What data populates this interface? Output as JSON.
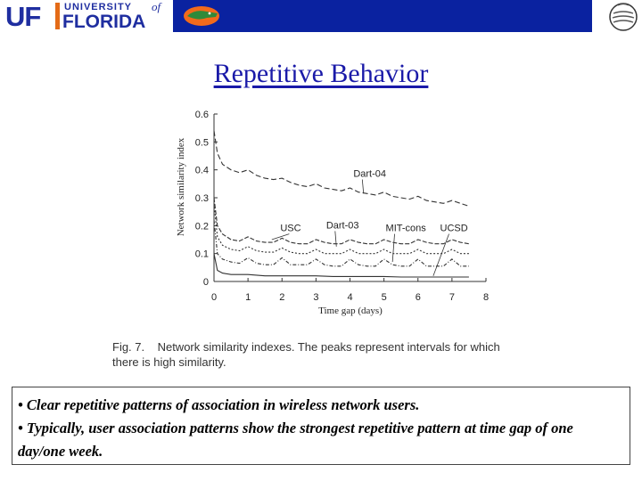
{
  "header": {
    "uf_letters": "UF",
    "university_text": "UNIVERSITY",
    "of_text": "of",
    "florida_text": "FLORIDA",
    "band_color": "#0a22a0",
    "logo_color": "#1f2ea0",
    "accent_color": "#e46b17",
    "icons": [
      "uf-logo",
      "gator-logo-icon",
      "university-seal-icon"
    ]
  },
  "slide": {
    "title": "Repetitive Behavior",
    "title_color": "#1a1aa8"
  },
  "figure": {
    "caption_line1": "Fig. 7.    Network similarity indexes. The peaks represent intervals for which",
    "caption_line2": "there is high similarity."
  },
  "chart_data": {
    "type": "line",
    "title": "",
    "xlabel": "Time gap (days)",
    "ylabel": "Network similarity index",
    "xlim": [
      0,
      8
    ],
    "ylim": [
      0,
      0.6
    ],
    "x_ticks": [
      "0",
      "1",
      "2",
      "3",
      "4",
      "5",
      "6",
      "7",
      "8"
    ],
    "y_ticks": [
      "0",
      "0.1",
      "0.2",
      "0.3",
      "0.4",
      "0.5",
      "0.6"
    ],
    "grid": false,
    "annotations": [
      "Dart-04",
      "USC",
      "Dart-03",
      "MIT-cons",
      "UCSD"
    ],
    "series": [
      {
        "name": "Dart-04",
        "x": [
          0,
          0.1,
          0.25,
          0.5,
          0.75,
          1.0,
          1.25,
          1.5,
          1.75,
          2.0,
          2.25,
          2.5,
          2.75,
          3.0,
          3.25,
          3.5,
          3.75,
          4.0,
          4.25,
          4.5,
          4.75,
          5.0,
          5.25,
          5.5,
          5.75,
          6.0,
          6.25,
          6.5,
          6.75,
          7.0,
          7.25,
          7.5
        ],
        "y": [
          0.54,
          0.46,
          0.42,
          0.4,
          0.39,
          0.4,
          0.38,
          0.37,
          0.365,
          0.37,
          0.355,
          0.345,
          0.34,
          0.35,
          0.335,
          0.33,
          0.325,
          0.335,
          0.32,
          0.315,
          0.31,
          0.32,
          0.305,
          0.3,
          0.295,
          0.305,
          0.29,
          0.285,
          0.28,
          0.29,
          0.28,
          0.27
        ]
      },
      {
        "name": "USC",
        "x": [
          0,
          0.1,
          0.25,
          0.5,
          0.75,
          1.0,
          1.25,
          1.5,
          1.75,
          2.0,
          2.25,
          2.5,
          2.75,
          3.0,
          3.25,
          3.5,
          3.75,
          4.0,
          4.25,
          4.5,
          4.75,
          5.0,
          5.25,
          5.5,
          5.75,
          6.0,
          6.25,
          6.5,
          6.75,
          7.0,
          7.25,
          7.5
        ],
        "y": [
          0.3,
          0.2,
          0.17,
          0.15,
          0.145,
          0.16,
          0.145,
          0.14,
          0.14,
          0.155,
          0.14,
          0.135,
          0.135,
          0.15,
          0.14,
          0.135,
          0.135,
          0.15,
          0.14,
          0.135,
          0.135,
          0.15,
          0.14,
          0.135,
          0.135,
          0.15,
          0.14,
          0.135,
          0.135,
          0.15,
          0.14,
          0.135
        ]
      },
      {
        "name": "Dart-03",
        "x": [
          0,
          0.1,
          0.25,
          0.5,
          0.75,
          1.0,
          1.25,
          1.5,
          1.75,
          2.0,
          2.25,
          2.5,
          2.75,
          3.0,
          3.25,
          3.5,
          3.75,
          4.0,
          4.25,
          4.5,
          4.75,
          5.0,
          5.25,
          5.5,
          5.75,
          6.0,
          6.25,
          6.5,
          6.75,
          7.0,
          7.25,
          7.5
        ],
        "y": [
          0.28,
          0.16,
          0.13,
          0.115,
          0.11,
          0.125,
          0.11,
          0.105,
          0.105,
          0.12,
          0.105,
          0.1,
          0.1,
          0.115,
          0.1,
          0.1,
          0.1,
          0.115,
          0.1,
          0.1,
          0.1,
          0.115,
          0.1,
          0.1,
          0.1,
          0.115,
          0.1,
          0.1,
          0.1,
          0.115,
          0.1,
          0.1
        ]
      },
      {
        "name": "MIT-cons",
        "x": [
          0,
          0.1,
          0.25,
          0.5,
          0.75,
          1.0,
          1.25,
          1.5,
          1.75,
          2.0,
          2.25,
          2.5,
          2.75,
          3.0,
          3.25,
          3.5,
          3.75,
          4.0,
          4.25,
          4.5,
          4.75,
          5.0,
          5.25,
          5.5,
          5.75,
          6.0,
          6.25,
          6.5,
          6.75,
          7.0,
          7.25,
          7.5
        ],
        "y": [
          0.22,
          0.1,
          0.08,
          0.07,
          0.065,
          0.085,
          0.065,
          0.06,
          0.06,
          0.085,
          0.06,
          0.06,
          0.06,
          0.08,
          0.06,
          0.055,
          0.055,
          0.08,
          0.06,
          0.055,
          0.055,
          0.08,
          0.06,
          0.055,
          0.055,
          0.08,
          0.055,
          0.055,
          0.055,
          0.08,
          0.055,
          0.055
        ]
      },
      {
        "name": "UCSD",
        "x": [
          0,
          0.1,
          0.25,
          0.5,
          0.75,
          1.0,
          1.5,
          2.0,
          2.5,
          3.0,
          3.5,
          4.0,
          4.5,
          5.0,
          5.5,
          6.0,
          6.5,
          7.0,
          7.5
        ],
        "y": [
          0.1,
          0.04,
          0.03,
          0.025,
          0.025,
          0.025,
          0.02,
          0.02,
          0.02,
          0.02,
          0.018,
          0.018,
          0.018,
          0.018,
          0.016,
          0.016,
          0.016,
          0.016,
          0.016
        ]
      }
    ]
  },
  "textbox": {
    "bullet1": "• Clear repetitive patterns of association in wireless network users.",
    "bullet2": "• Typically, user association patterns show the strongest repetitive pattern at time gap of one day/one week."
  }
}
